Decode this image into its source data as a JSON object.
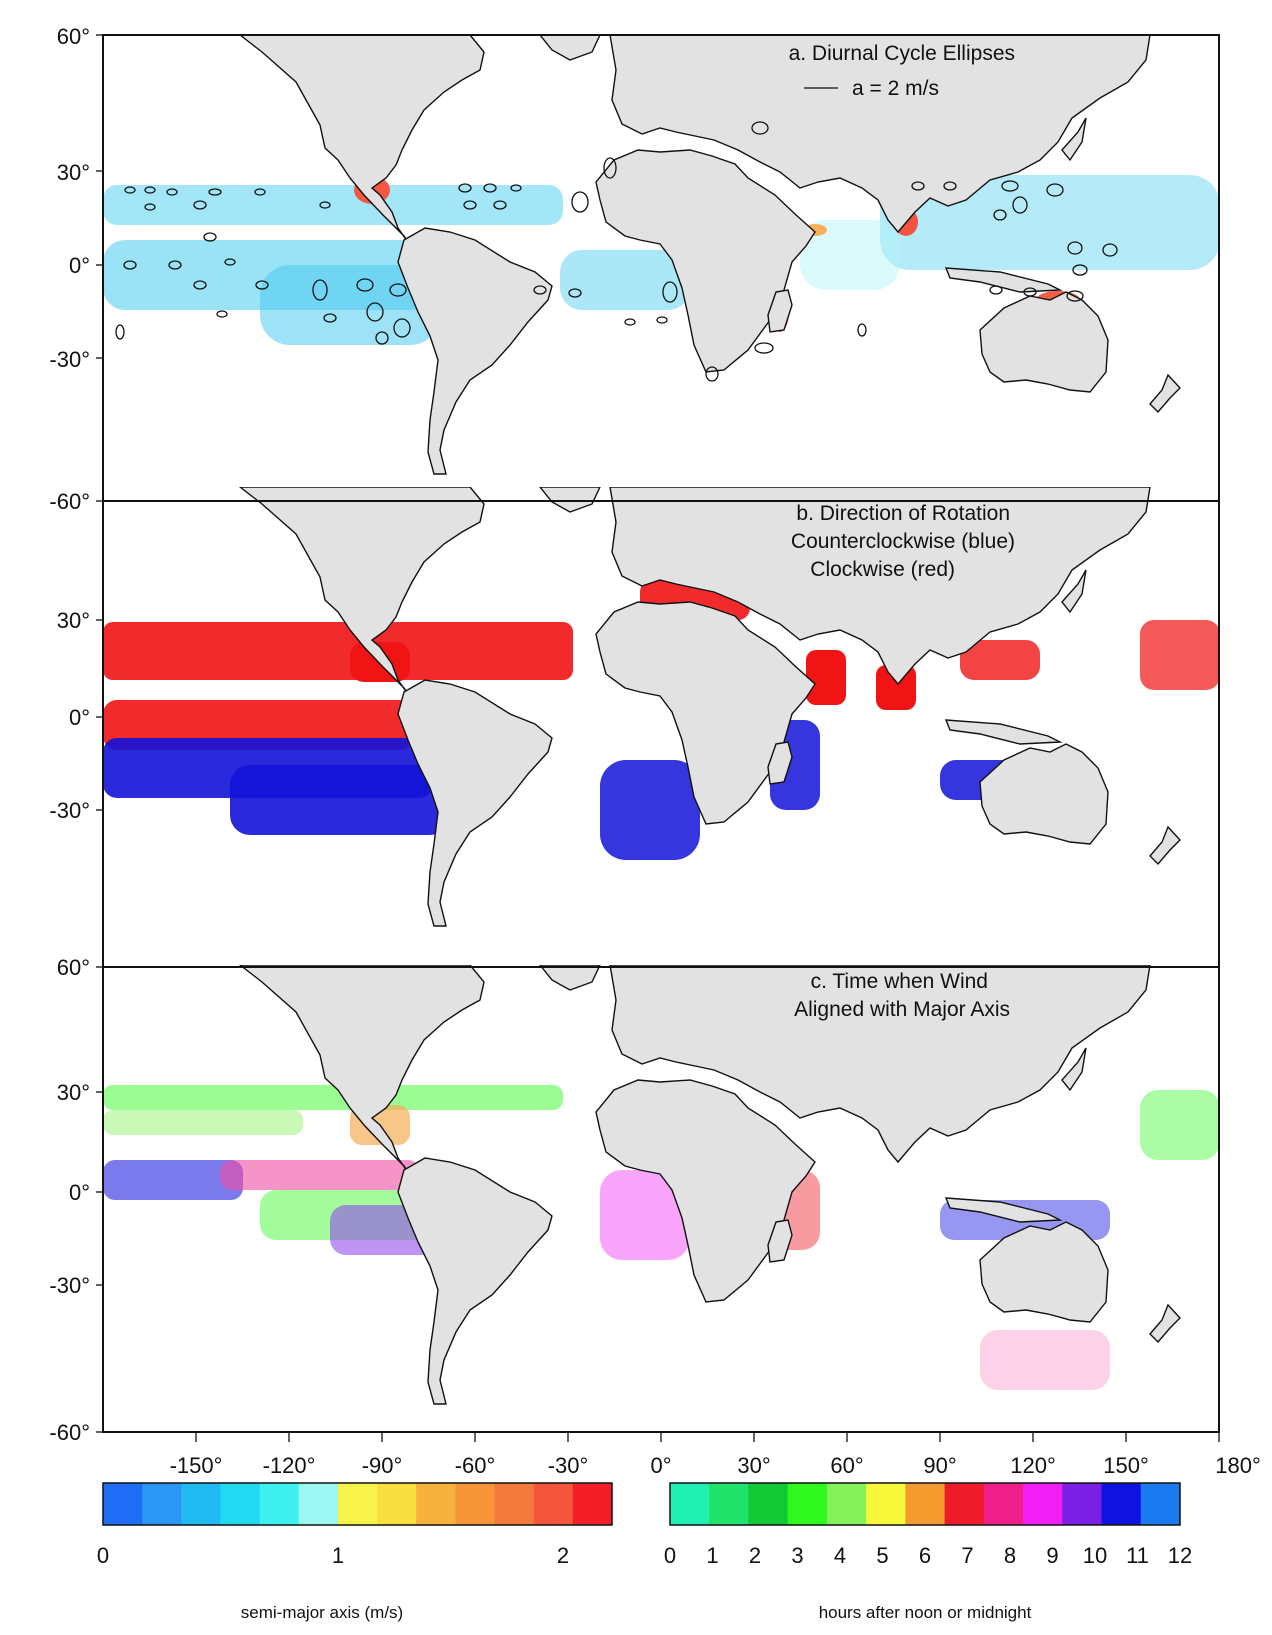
{
  "panels": [
    {
      "id": "a",
      "title_lines": [
        "a. Diurnal Cycle Ellipses"
      ],
      "scale_label": "a = 2 m/s",
      "lat_labels": [
        "60°",
        "30°",
        "0°",
        "-30°",
        "-60°"
      ]
    },
    {
      "id": "b",
      "title_lines": [
        "b. Direction of Rotation",
        "Counterclockwise (blue)",
        "Clockwise (red)"
      ],
      "lat_labels": [
        "30°",
        "0°",
        "-30°"
      ]
    },
    {
      "id": "c",
      "title_lines": [
        "c. Time when Wind",
        "Aligned with Major Axis"
      ],
      "lat_labels": [
        "60°",
        "30°",
        "0°",
        "-30°",
        "-60°"
      ]
    }
  ],
  "lon_labels": [
    "-150°",
    "-120°",
    "-90°",
    "-60°",
    "-30°",
    "0°",
    "30°",
    "60°",
    "90°",
    "120°",
    "150°",
    "180°"
  ],
  "colorbar_left": {
    "title": "semi-major axis (m/s)",
    "tick_labels": [
      "0",
      "1",
      "2"
    ],
    "colors": [
      "#1f6cf5",
      "#2b96f5",
      "#21baf2",
      "#22d9f2",
      "#3ef1f0",
      "#9bf7f2",
      "#f8f34a",
      "#f7e040",
      "#f6b23c",
      "#f69638",
      "#f4793c",
      "#f4553c",
      "#f21f28"
    ]
  },
  "colorbar_right": {
    "title": "hours after noon or midnight",
    "tick_labels": [
      "0",
      "1",
      "2",
      "3",
      "4",
      "5",
      "6",
      "7",
      "8",
      "9",
      "10",
      "11",
      "12"
    ],
    "colors": [
      "#20f0b0",
      "#1fe36a",
      "#10c935",
      "#2ff81f",
      "#86f05a",
      "#f8f83a",
      "#f59a2e",
      "#ee1c2a",
      "#ef1f8a",
      "#f21ff5",
      "#7a1fe6",
      "#1212e0",
      "#1c7af0"
    ]
  },
  "map_colors": {
    "land": "#e2e2e2",
    "coast": "#111111",
    "cw_red": "#f01414",
    "ccw_blue": "#1313d8"
  }
}
